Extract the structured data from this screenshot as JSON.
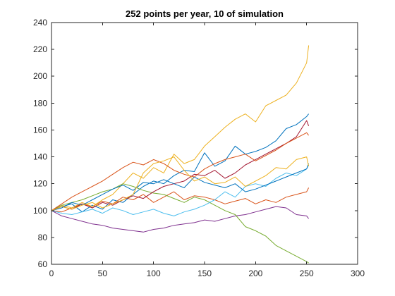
{
  "chart_data": {
    "type": "line",
    "title": "252 points per year, 10 of simulation",
    "xlabel": "",
    "ylabel": "",
    "xlim": [
      0,
      300
    ],
    "ylim": [
      60,
      240
    ],
    "x_ticks": [
      0,
      50,
      100,
      150,
      200,
      250,
      300
    ],
    "y_ticks": [
      60,
      80,
      100,
      120,
      140,
      160,
      180,
      200,
      220,
      240
    ],
    "x_tick_labels": [
      "0",
      "50",
      "100",
      "150",
      "200",
      "250",
      "300"
    ],
    "y_tick_labels": [
      "60",
      "80",
      "100",
      "120",
      "140",
      "160",
      "180",
      "200",
      "220",
      "240"
    ],
    "grid": false,
    "x": [
      0,
      10,
      20,
      30,
      40,
      50,
      60,
      70,
      80,
      90,
      100,
      110,
      120,
      130,
      140,
      150,
      160,
      170,
      180,
      190,
      200,
      210,
      220,
      230,
      240,
      250,
      252
    ],
    "series": [
      {
        "color": "#0072BD",
        "values": [
          100,
          103,
          105,
          99,
          104,
          101,
          108,
          106,
          112,
          118,
          122,
          120,
          126,
          130,
          129,
          143,
          133,
          137,
          148,
          142,
          144,
          147,
          152,
          161,
          164,
          170,
          172
        ]
      },
      {
        "color": "#D95319",
        "values": [
          100,
          99,
          102,
          105,
          103,
          107,
          105,
          110,
          108,
          112,
          106,
          110,
          114,
          108,
          111,
          110,
          108,
          105,
          107,
          109,
          105,
          108,
          106,
          110,
          112,
          114,
          117
        ]
      },
      {
        "color": "#EDB120",
        "values": [
          100,
          104,
          102,
          106,
          103,
          108,
          112,
          120,
          128,
          124,
          132,
          128,
          142,
          135,
          138,
          148,
          155,
          162,
          168,
          172,
          166,
          178,
          182,
          186,
          195,
          210,
          223
        ]
      },
      {
        "color": "#7E2F8E",
        "values": [
          100,
          96,
          94,
          92,
          90,
          89,
          87,
          86,
          85,
          84,
          86,
          87,
          89,
          90,
          91,
          93,
          92,
          94,
          96,
          97,
          99,
          101,
          103,
          102,
          97,
          96,
          94
        ]
      },
      {
        "color": "#77AC30",
        "values": [
          100,
          104,
          106,
          108,
          111,
          114,
          116,
          120,
          118,
          115,
          113,
          112,
          109,
          106,
          110,
          108,
          104,
          100,
          97,
          88,
          85,
          81,
          74,
          70,
          66,
          62,
          61
        ]
      },
      {
        "color": "#4DBEEE",
        "values": [
          100,
          98,
          97,
          99,
          101,
          98,
          102,
          100,
          97,
          99,
          101,
          98,
          96,
          99,
          101,
          104,
          108,
          114,
          110,
          118,
          120,
          118,
          124,
          128,
          126,
          131,
          134
        ]
      },
      {
        "color": "#A2142F",
        "values": [
          100,
          103,
          101,
          105,
          102,
          106,
          104,
          108,
          111,
          109,
          114,
          118,
          120,
          122,
          127,
          126,
          130,
          124,
          128,
          134,
          138,
          142,
          146,
          150,
          155,
          167,
          163
        ]
      },
      {
        "color": "#0072BD",
        "values": [
          100,
          102,
          106,
          104,
          108,
          112,
          116,
          119,
          115,
          121,
          120,
          123,
          120,
          117,
          125,
          121,
          119,
          117,
          120,
          114,
          116,
          119,
          122,
          125,
          128,
          131,
          135
        ]
      },
      {
        "color": "#D95319",
        "values": [
          100,
          105,
          110,
          114,
          118,
          122,
          127,
          132,
          136,
          134,
          138,
          135,
          130,
          127,
          125,
          131,
          135,
          138,
          140,
          142,
          137,
          141,
          145,
          150,
          154,
          158,
          156
        ]
      },
      {
        "color": "#EDB120",
        "values": [
          100,
          103,
          101,
          104,
          106,
          102,
          105,
          108,
          112,
          128,
          135,
          137,
          140,
          130,
          122,
          125,
          120,
          121,
          125,
          118,
          122,
          126,
          132,
          131,
          138,
          140,
          133
        ]
      }
    ]
  }
}
